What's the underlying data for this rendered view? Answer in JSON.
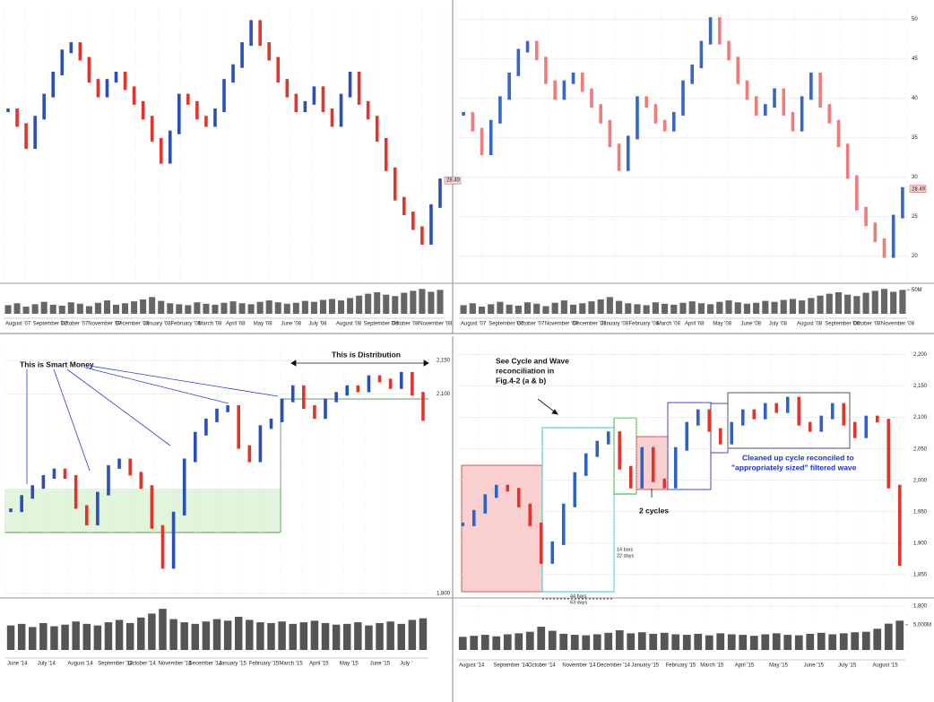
{
  "chart_data": [
    {
      "type": "price-bars",
      "up_color": "#2b4fb8",
      "down_color": "#e3342b",
      "ylim": [
        15,
        52
      ],
      "values": [
        38,
        36,
        33,
        37,
        40,
        43,
        46,
        47,
        45,
        42,
        40,
        42,
        43,
        41,
        39,
        37,
        34,
        31,
        35,
        40,
        39,
        37,
        36,
        38,
        42,
        44,
        47,
        50,
        47,
        45,
        42,
        40,
        38,
        39,
        41,
        38,
        36,
        40,
        43,
        39,
        37,
        34,
        30,
        26,
        24,
        22,
        20,
        25,
        28.49
      ],
      "volume": [
        18,
        22,
        15,
        20,
        25,
        19,
        17,
        24,
        21,
        16,
        23,
        28,
        19,
        22,
        26,
        30,
        35,
        27,
        22,
        20,
        18,
        24,
        21,
        19,
        23,
        26,
        22,
        20,
        25,
        28,
        24,
        21,
        23,
        27,
        25,
        29,
        31,
        28,
        33,
        38,
        42,
        45,
        40,
        37,
        44,
        48,
        52,
        46,
        50
      ],
      "vlim": [
        0,
        60
      ],
      "price_tag": "28.49",
      "months": [
        "August '07",
        "September '07",
        "October '07",
        "November '07",
        "December '07",
        "January '08",
        "February '08",
        "March '08",
        "April '08",
        "May '08",
        "June '08",
        "July '08",
        "August '08",
        "September '08",
        "October '08",
        "November '08"
      ]
    },
    {
      "type": "price-bars",
      "up_color": "#3566c8",
      "down_color": "#f07b7b",
      "ylim": [
        17,
        51.5
      ],
      "yticks": [
        20,
        25,
        30,
        35,
        40,
        45,
        50
      ],
      "values": [
        38,
        36,
        33,
        37,
        40,
        43,
        46,
        47,
        45,
        42,
        40,
        42,
        43,
        41,
        39,
        37,
        34,
        31,
        35,
        40,
        39,
        37,
        36,
        38,
        42,
        44,
        47,
        50,
        47,
        45,
        42,
        40,
        38,
        39,
        41,
        38,
        36,
        40,
        43,
        39,
        37,
        34,
        30,
        26,
        24,
        22,
        20,
        25,
        28.49
      ],
      "volume": [
        18,
        22,
        15,
        20,
        25,
        19,
        17,
        24,
        21,
        16,
        23,
        28,
        19,
        22,
        26,
        30,
        35,
        27,
        22,
        20,
        18,
        24,
        21,
        19,
        23,
        26,
        22,
        20,
        25,
        28,
        24,
        21,
        23,
        27,
        25,
        29,
        31,
        28,
        33,
        38,
        42,
        45,
        40,
        37,
        44,
        48,
        52,
        46,
        50
      ],
      "vlim": [
        0,
        60
      ],
      "vticks": [
        {
          "value": 50,
          "label": "50M"
        }
      ],
      "price_tag": "28.49",
      "months": [
        "August '07",
        "September '07",
        "October '07",
        "November '07",
        "December '07",
        "January '08",
        "February '08",
        "March '08",
        "April '08",
        "May '08",
        "June '08",
        "July '08",
        "August '08",
        "September '08",
        "October '08",
        "November '08"
      ]
    },
    {
      "type": "price-bars",
      "up_color": "#2b4fb8",
      "down_color": "#e3342b",
      "ylim": [
        1800,
        2175
      ],
      "yticks": [
        {
          "value": 2150,
          "label": "2,150"
        },
        {
          "value": 2100,
          "label": "2,100"
        },
        {
          "value": 1800,
          "label": "1,800"
        }
      ],
      "values": [
        1925,
        1945,
        1960,
        1975,
        1985,
        1975,
        1930,
        1905,
        1950,
        1990,
        2000,
        1980,
        1960,
        1900,
        1840,
        1920,
        2000,
        2040,
        2060,
        2075,
        2080,
        2020,
        2000,
        2050,
        2060,
        2090,
        2110,
        2080,
        2065,
        2090,
        2100,
        2110,
        2105,
        2125,
        2120,
        2110,
        2130,
        2100,
        2062
      ],
      "volume": [
        3100,
        3300,
        2900,
        3400,
        3000,
        3200,
        3600,
        3300,
        3100,
        3500,
        3800,
        3400,
        4100,
        4600,
        5200,
        3900,
        3500,
        3300,
        3600,
        3900,
        3700,
        4200,
        3800,
        3500,
        3400,
        3600,
        3300,
        3500,
        3700,
        3400,
        3200,
        3300,
        3500,
        3100,
        3400,
        3600,
        3300,
        3800,
        4000
      ],
      "vlim": [
        0,
        6000
      ],
      "annotations": [
        "This is Smart Money",
        "This is Distribution"
      ],
      "months": [
        "June '14",
        "July '14",
        "August '14",
        "September '14",
        "October '14",
        "November '14",
        "December '14",
        "January '15",
        "February '15",
        "March '15",
        "April '15",
        "May '15",
        "June '15",
        "July '"
      ]
    },
    {
      "type": "price-bars",
      "up_color": "#2b63c8",
      "down_color": "#e3342b",
      "ylim": [
        1780,
        2215
      ],
      "yticks": [
        {
          "value": 2200,
          "label": "2,200"
        },
        {
          "value": 2150,
          "label": "2,150"
        },
        {
          "value": 2100,
          "label": "2,100"
        },
        {
          "value": 2050,
          "label": "2,050"
        },
        {
          "value": 2000,
          "label": "2,000"
        },
        {
          "value": 1950,
          "label": "1,950"
        },
        {
          "value": 1900,
          "label": "1,900"
        },
        {
          "value": 1850,
          "label": "1,850"
        },
        {
          "value": 1800,
          "label": "1,800"
        }
      ],
      "values": [
        1930,
        1950,
        1975,
        1990,
        1985,
        1960,
        1930,
        1870,
        1900,
        1960,
        2010,
        2040,
        2060,
        2075,
        2020,
        1990,
        2050,
        2000,
        1990,
        2050,
        2090,
        2110,
        2080,
        2060,
        2090,
        2110,
        2100,
        2120,
        2110,
        2130,
        2090,
        2080,
        2100,
        2120,
        2090,
        2070,
        2100,
        2095,
        1990,
        1867
      ],
      "volume": [
        2600,
        2800,
        3000,
        2700,
        3100,
        3300,
        3600,
        4600,
        3800,
        3200,
        3000,
        2900,
        3100,
        3400,
        3900,
        3300,
        3500,
        3200,
        3400,
        3100,
        3000,
        3200,
        2900,
        3300,
        3100,
        3000,
        2800,
        3100,
        3300,
        3000,
        2900,
        3200,
        3400,
        3100,
        3300,
        3500,
        3600,
        4200,
        5200,
        5800
      ],
      "vlim": [
        0,
        6200
      ],
      "vticks": [
        {
          "value": 5000,
          "label": "5,000M"
        }
      ],
      "annotations": [
        "See Cycle and Wave",
        "reconciliation in",
        "Fig.4-2 (a & b)",
        "2 cycles",
        "Cleaned up cycle reconciled to",
        "\"appropriately sized\" filtered wave",
        "14 bars",
        "22 days",
        "44 bars",
        "63 days"
      ],
      "months": [
        "August '14",
        "September '14",
        "October '14",
        "November '14",
        "December '14",
        "January '15",
        "February '15",
        "March '15",
        "April '15",
        "May '15",
        "June '15",
        "July '15",
        "August '15"
      ]
    }
  ]
}
